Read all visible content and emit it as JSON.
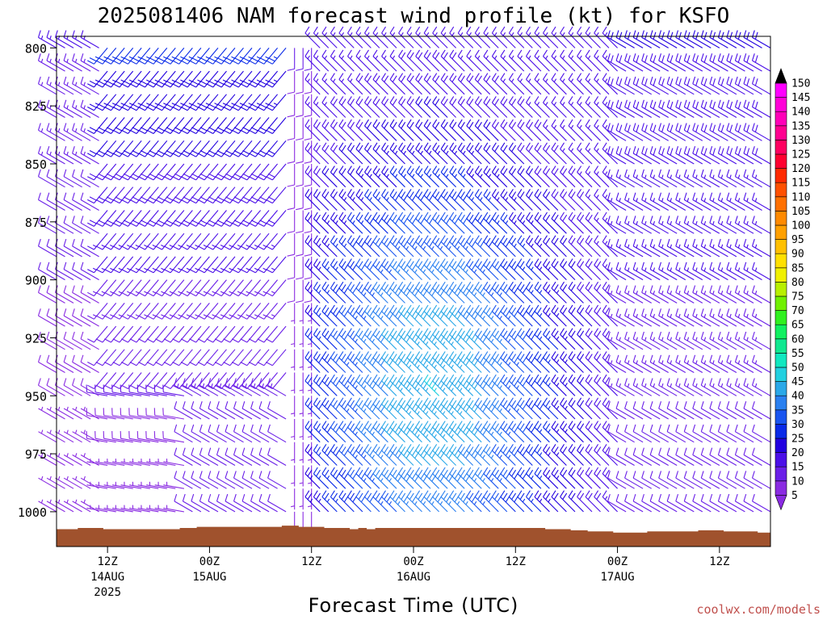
{
  "chart_data": {
    "type": "wind-barb-profile",
    "title": "2025081406 NAM forecast wind profile (kt) for KSFO",
    "xlabel": "Forecast Time (UTC)",
    "ylabel": "",
    "y_scale": "pressure (reversed)",
    "ylim": [
      1015,
      795
    ],
    "y_ticks": [
      800,
      825,
      850,
      875,
      900,
      925,
      950,
      975,
      1000
    ],
    "x_unit": "forecast hour (from 2025081406)",
    "xlim": [
      0,
      84
    ],
    "x_step": 1,
    "x_ticks": [
      {
        "hour": 6,
        "label": "12Z",
        "date": "14AUG",
        "year": "2025"
      },
      {
        "hour": 18,
        "label": "00Z",
        "date": "15AUG",
        "year": ""
      },
      {
        "hour": 30,
        "label": "12Z",
        "date": "",
        "year": ""
      },
      {
        "hour": 42,
        "label": "00Z",
        "date": "16AUG",
        "year": ""
      },
      {
        "hour": 54,
        "label": "12Z",
        "date": "",
        "year": ""
      },
      {
        "hour": 66,
        "label": "00Z",
        "date": "17AUG",
        "year": ""
      },
      {
        "hour": 78,
        "label": "12Z",
        "date": "",
        "year": ""
      }
    ],
    "levels_hpa": [
      800,
      810,
      820,
      830,
      840,
      850,
      860,
      870,
      880,
      890,
      900,
      910,
      920,
      930,
      940,
      950,
      960,
      970,
      980,
      990,
      1000
    ],
    "grid": false,
    "legend": "right colorbar",
    "colorbar": {
      "unit": "kt",
      "values": [
        5,
        10,
        15,
        20,
        25,
        30,
        35,
        40,
        45,
        50,
        55,
        60,
        65,
        70,
        75,
        80,
        85,
        90,
        95,
        100,
        105,
        110,
        115,
        120,
        125,
        130,
        135,
        140,
        145,
        150
      ],
      "colors": [
        "#8a2be2",
        "#6a1fe8",
        "#4b0fe8",
        "#2200e0",
        "#0a2ae8",
        "#1a55f0",
        "#2a80f0",
        "#2aa8e8",
        "#22d0e0",
        "#10e8c0",
        "#10e890",
        "#10f060",
        "#30f020",
        "#70f000",
        "#b8f000",
        "#f0f000",
        "#ffe000",
        "#ffc000",
        "#ffa000",
        "#ff8a00",
        "#ff7000",
        "#ff5000",
        "#ff2a00",
        "#ff0030",
        "#ff0060",
        "#ff0090",
        "#ff00b8",
        "#ff00d8",
        "#ff00ff",
        "#000000"
      ]
    },
    "surface_pressure_hpa": [
      1007.5,
      1007.5,
      1007.5,
      1007,
      1007,
      1007,
      1007.5,
      1007.5,
      1007.5,
      1007.5,
      1007.5,
      1007.5,
      1007.5,
      1007.5,
      1007.5,
      1007,
      1007,
      1006.5,
      1006.5,
      1006.5,
      1006.5,
      1006.5,
      1006.5,
      1006.5,
      1006.5,
      1006.5,
      1006.5,
      1006,
      1006,
      1006.5,
      1006.5,
      1006.5,
      1007,
      1007,
      1007,
      1007.5,
      1007,
      1007.5,
      1007,
      1007,
      1007,
      1007,
      1007,
      1007,
      1007,
      1007,
      1007,
      1007,
      1007,
      1007,
      1007,
      1007,
      1007,
      1007,
      1007,
      1007,
      1007,
      1007,
      1007.5,
      1007.5,
      1007.5,
      1008,
      1008,
      1008.5,
      1008.5,
      1008.5,
      1009,
      1009,
      1009,
      1009,
      1008.5,
      1008.5,
      1008.5,
      1008.5,
      1008.5,
      1008.5,
      1008,
      1008,
      1008,
      1008.5,
      1008.5,
      1008.5,
      1008.5,
      1009,
      1009
    ],
    "wind_regimes": [
      {
        "hours": "0-6",
        "levels": "800-1000",
        "direction_deg": 300,
        "speed_kt": "5-15"
      },
      {
        "hours": "6-27",
        "levels": "800-940",
        "direction_deg": 220,
        "speed_kt": "10-25"
      },
      {
        "hours": "6-15",
        "levels": "950-1000",
        "direction_deg": 280,
        "speed_kt": "5-10"
      },
      {
        "hours": "28-30",
        "levels": "800-1000",
        "direction_deg": 180,
        "speed_kt": "5-10"
      },
      {
        "hours": "31-66",
        "levels": "800-1000",
        "direction_deg": 315,
        "speed_kt": "15-45",
        "max_kt": 45,
        "max_at": {
          "hour": 45,
          "level": 950
        }
      },
      {
        "hours": "67-84",
        "levels": "800-1000",
        "direction_deg": 300,
        "speed_kt": "10-20"
      }
    ]
  },
  "credit": "coolwx.com/models"
}
